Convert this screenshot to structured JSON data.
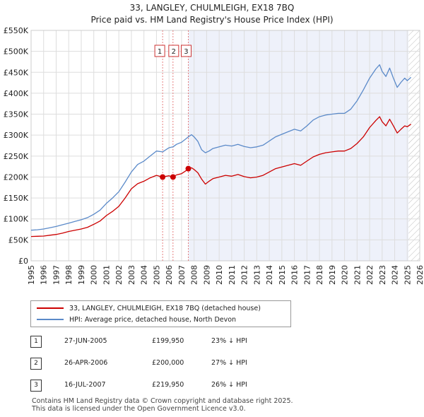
{
  "title_line1": "33, LANGLEY, CHULMLEIGH, EX18 7BQ",
  "title_line2": "Price paid vs. HM Land Registry's House Price Index (HPI)",
  "colors": {
    "price": "#cc0000",
    "hpi": "#5b8ac9",
    "shade": "#eef1fa",
    "grid": "#dddddd",
    "vline": "#e06060"
  },
  "legend": {
    "price_label": "33, LANGLEY, CHULMLEIGH, EX18 7BQ (detached house)",
    "hpi_label": "HPI: Average price, detached house, North Devon"
  },
  "transactions": [
    {
      "num": "1",
      "date": "27-JUN-2005",
      "price": "£199,950",
      "hpi": "23% ↓ HPI"
    },
    {
      "num": "2",
      "date": "26-APR-2006",
      "price": "£200,000",
      "hpi": "27% ↓ HPI"
    },
    {
      "num": "3",
      "date": "16-JUL-2007",
      "price": "£219,950",
      "hpi": "26% ↓ HPI"
    }
  ],
  "footer_line1": "Contains HM Land Registry data © Crown copyright and database right 2025.",
  "footer_line2": "This data is licensed under the Open Government Licence v3.0.",
  "chart_data": {
    "type": "line",
    "title": "33, LANGLEY, CHULMLEIGH, EX18 7BQ — Price paid vs. HM Land Registry's House Price Index (HPI)",
    "xlim": [
      1995,
      2026
    ],
    "ylim": [
      0,
      550000
    ],
    "y_ticks": [
      0,
      50000,
      100000,
      150000,
      200000,
      250000,
      300000,
      350000,
      400000,
      450000,
      500000,
      550000
    ],
    "y_tick_labels": [
      "£0",
      "£50K",
      "£100K",
      "£150K",
      "£200K",
      "£250K",
      "£300K",
      "£350K",
      "£400K",
      "£450K",
      "£500K",
      "£550K"
    ],
    "x_ticks": [
      1995,
      1996,
      1997,
      1998,
      1999,
      2000,
      2001,
      2002,
      2003,
      2004,
      2005,
      2006,
      2007,
      2008,
      2009,
      2010,
      2011,
      2012,
      2013,
      2014,
      2015,
      2016,
      2017,
      2018,
      2019,
      2020,
      2021,
      2022,
      2023,
      2024,
      2025,
      2026
    ],
    "x_tick_labels": [
      "1995",
      "1996",
      "1997",
      "1998",
      "1999",
      "2000",
      "2001",
      "2002",
      "2003",
      "2004",
      "2005",
      "2006",
      "2007",
      "2008",
      "2009",
      "2010",
      "2011",
      "2012",
      "2013",
      "2014",
      "2015",
      "2016",
      "2017",
      "2018",
      "2019",
      "2020",
      "2021",
      "2022",
      "2023",
      "2024",
      "2025",
      "2026"
    ],
    "grid": true,
    "shaded_from": 2007.54,
    "hatched_from": 2025.1,
    "series": [
      {
        "name": "33, LANGLEY, CHULMLEIGH, EX18 7BQ (detached house)",
        "color": "#cc0000",
        "x": [
          1995.0,
          1995.5,
          1996.0,
          1996.5,
          1997.0,
          1997.5,
          1998.0,
          1998.5,
          1999.0,
          1999.5,
          2000.0,
          2000.5,
          2001.0,
          2001.5,
          2002.0,
          2002.5,
          2003.0,
          2003.5,
          2004.0,
          2004.5,
          2005.0,
          2005.49,
          2005.8,
          2006.0,
          2006.32,
          2006.6,
          2007.0,
          2007.3,
          2007.54,
          2007.8,
          2008.0,
          2008.3,
          2008.6,
          2008.9,
          2009.2,
          2009.5,
          2010.0,
          2010.5,
          2011.0,
          2011.5,
          2012.0,
          2012.5,
          2013.0,
          2013.5,
          2014.0,
          2014.5,
          2015.0,
          2015.5,
          2016.0,
          2016.5,
          2017.0,
          2017.5,
          2018.0,
          2018.5,
          2019.0,
          2019.5,
          2020.0,
          2020.5,
          2021.0,
          2021.5,
          2022.0,
          2022.5,
          2022.8,
          2023.0,
          2023.3,
          2023.6,
          2023.9,
          2024.2,
          2024.5,
          2024.8,
          2025.0,
          2025.3
        ],
        "y": [
          58000,
          58500,
          59000,
          61000,
          63000,
          66000,
          70000,
          73000,
          76000,
          80000,
          87000,
          95000,
          108000,
          118000,
          130000,
          150000,
          172000,
          184000,
          190000,
          198000,
          204000,
          199950,
          202000,
          203000,
          200000,
          205000,
          208000,
          214000,
          219950,
          222000,
          218000,
          210000,
          195000,
          183000,
          190000,
          196000,
          200000,
          204000,
          202000,
          206000,
          201000,
          198000,
          200000,
          204000,
          212000,
          220000,
          224000,
          228000,
          232000,
          228000,
          238000,
          248000,
          254000,
          258000,
          260000,
          262000,
          262000,
          268000,
          280000,
          296000,
          318000,
          335000,
          344000,
          332000,
          322000,
          338000,
          322000,
          305000,
          314000,
          322000,
          320000,
          326000
        ]
      },
      {
        "name": "HPI: Average price, detached house, North Devon",
        "color": "#5b8ac9",
        "x": [
          1995.0,
          1995.5,
          1996.0,
          1996.5,
          1997.0,
          1997.5,
          1998.0,
          1998.5,
          1999.0,
          1999.5,
          2000.0,
          2000.5,
          2001.0,
          2001.5,
          2002.0,
          2002.5,
          2003.0,
          2003.5,
          2004.0,
          2004.5,
          2005.0,
          2005.49,
          2005.8,
          2006.0,
          2006.32,
          2006.6,
          2007.0,
          2007.3,
          2007.54,
          2007.8,
          2008.0,
          2008.3,
          2008.6,
          2008.9,
          2009.2,
          2009.5,
          2010.0,
          2010.5,
          2011.0,
          2011.5,
          2012.0,
          2012.5,
          2013.0,
          2013.5,
          2014.0,
          2014.5,
          2015.0,
          2015.5,
          2016.0,
          2016.5,
          2017.0,
          2017.5,
          2018.0,
          2018.5,
          2019.0,
          2019.5,
          2020.0,
          2020.5,
          2021.0,
          2021.5,
          2022.0,
          2022.5,
          2022.8,
          2023.0,
          2023.3,
          2023.6,
          2023.9,
          2024.2,
          2024.5,
          2024.8,
          2025.0,
          2025.3
        ],
        "y": [
          73000,
          74000,
          76000,
          79000,
          82000,
          86000,
          90000,
          94000,
          98000,
          103000,
          111000,
          121000,
          137000,
          150000,
          165000,
          188000,
          212000,
          230000,
          238000,
          250000,
          262000,
          260000,
          266000,
          270000,
          272000,
          278000,
          283000,
          290000,
          296000,
          301000,
          296000,
          285000,
          265000,
          258000,
          262000,
          268000,
          272000,
          276000,
          274000,
          278000,
          273000,
          270000,
          272000,
          276000,
          286000,
          296000,
          302000,
          308000,
          314000,
          310000,
          322000,
          336000,
          344000,
          348000,
          350000,
          352000,
          352000,
          362000,
          382000,
          408000,
          436000,
          458000,
          468000,
          452000,
          440000,
          460000,
          436000,
          414000,
          426000,
          436000,
          430000,
          438000
        ]
      }
    ],
    "sales": [
      {
        "label": "1",
        "x": 2005.49,
        "y": 199950
      },
      {
        "label": "2",
        "x": 2006.32,
        "y": 200000
      },
      {
        "label": "3",
        "x": 2007.54,
        "y": 219950
      }
    ]
  }
}
